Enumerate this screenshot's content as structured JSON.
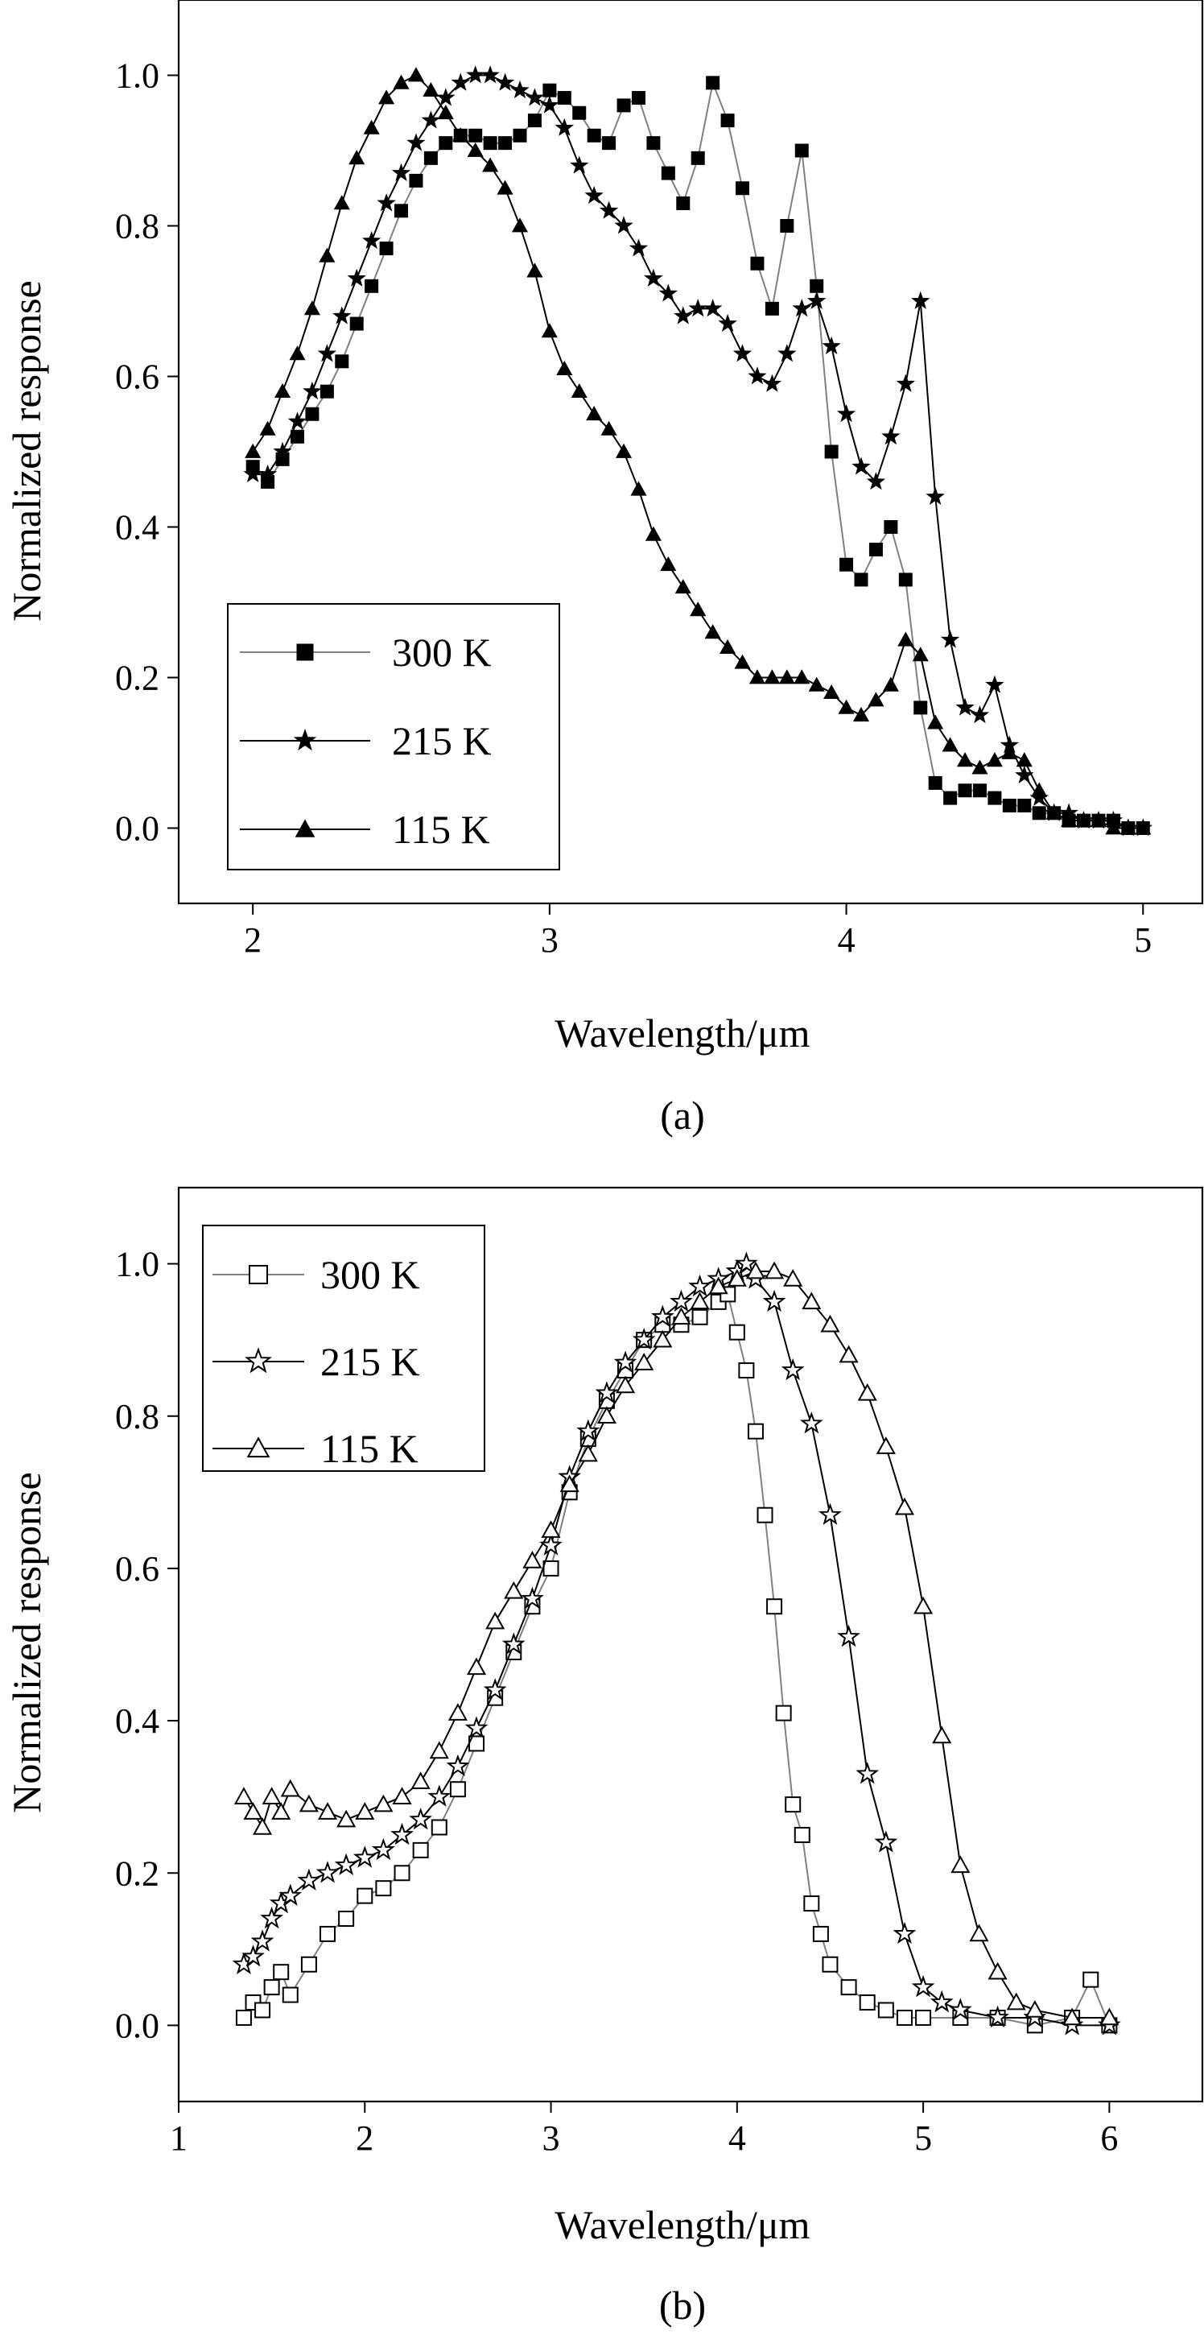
{
  "chart_data": [
    {
      "panel": "(a)",
      "type": "line",
      "xlabel": "Wavelength/μm",
      "ylabel": "Normalized response",
      "xlim": [
        1.75,
        5.2
      ],
      "ylim": [
        -0.1,
        1.1
      ],
      "xticks": [
        2,
        3,
        4,
        5
      ],
      "yticks": [
        0.0,
        0.2,
        0.4,
        0.6,
        0.8,
        1.0
      ],
      "xtick_labels": [
        "2",
        "3",
        "4",
        "5"
      ],
      "ytick_labels": [
        "0.0",
        "0.2",
        "0.4",
        "0.6",
        "0.8",
        "1.0"
      ],
      "legend_position": "lower-left",
      "series": [
        {
          "name": "300 K",
          "marker": "square-filled",
          "line_color": "#808080",
          "marker_color": "#000000",
          "x": [
            2.0,
            2.05,
            2.1,
            2.15,
            2.2,
            2.25,
            2.3,
            2.35,
            2.4,
            2.45,
            2.5,
            2.55,
            2.6,
            2.65,
            2.7,
            2.75,
            2.8,
            2.85,
            2.9,
            2.95,
            3.0,
            3.05,
            3.1,
            3.15,
            3.2,
            3.25,
            3.3,
            3.35,
            3.4,
            3.45,
            3.5,
            3.55,
            3.6,
            3.65,
            3.7,
            3.75,
            3.8,
            3.85,
            3.9,
            3.95,
            4.0,
            4.05,
            4.1,
            4.15,
            4.2,
            4.25,
            4.3,
            4.35,
            4.4,
            4.45,
            4.5,
            4.55,
            4.6,
            4.65,
            4.7,
            4.75,
            4.8,
            4.85,
            4.9,
            4.95,
            5.0
          ],
          "y": [
            0.48,
            0.46,
            0.49,
            0.52,
            0.55,
            0.58,
            0.62,
            0.67,
            0.72,
            0.77,
            0.82,
            0.86,
            0.89,
            0.91,
            0.92,
            0.92,
            0.91,
            0.91,
            0.92,
            0.94,
            0.98,
            0.97,
            0.95,
            0.92,
            0.91,
            0.96,
            0.97,
            0.91,
            0.87,
            0.83,
            0.89,
            0.99,
            0.94,
            0.85,
            0.75,
            0.69,
            0.8,
            0.9,
            0.72,
            0.5,
            0.35,
            0.33,
            0.37,
            0.4,
            0.33,
            0.16,
            0.06,
            0.04,
            0.05,
            0.05,
            0.04,
            0.03,
            0.03,
            0.02,
            0.02,
            0.01,
            0.01,
            0.01,
            0.01,
            0.0,
            0.0
          ]
        },
        {
          "name": "215 K",
          "marker": "star-filled",
          "line_color": "#000000",
          "marker_color": "#000000",
          "x": [
            2.0,
            2.05,
            2.1,
            2.15,
            2.2,
            2.25,
            2.3,
            2.35,
            2.4,
            2.45,
            2.5,
            2.55,
            2.6,
            2.65,
            2.7,
            2.75,
            2.8,
            2.85,
            2.9,
            2.95,
            3.0,
            3.05,
            3.1,
            3.15,
            3.2,
            3.25,
            3.3,
            3.35,
            3.4,
            3.45,
            3.5,
            3.55,
            3.6,
            3.65,
            3.7,
            3.75,
            3.8,
            3.85,
            3.9,
            3.95,
            4.0,
            4.05,
            4.1,
            4.15,
            4.2,
            4.25,
            4.3,
            4.35,
            4.4,
            4.45,
            4.5,
            4.55,
            4.6,
            4.65,
            4.7,
            4.75,
            4.8,
            4.85,
            4.9,
            4.95,
            5.0
          ],
          "y": [
            0.47,
            0.47,
            0.5,
            0.54,
            0.58,
            0.63,
            0.68,
            0.73,
            0.78,
            0.83,
            0.87,
            0.91,
            0.94,
            0.97,
            0.99,
            1.0,
            1.0,
            0.99,
            0.98,
            0.97,
            0.96,
            0.93,
            0.88,
            0.84,
            0.82,
            0.8,
            0.77,
            0.73,
            0.71,
            0.68,
            0.69,
            0.69,
            0.67,
            0.63,
            0.6,
            0.59,
            0.63,
            0.69,
            0.7,
            0.64,
            0.55,
            0.48,
            0.46,
            0.52,
            0.59,
            0.7,
            0.44,
            0.25,
            0.16,
            0.15,
            0.19,
            0.11,
            0.07,
            0.04,
            0.02,
            0.02,
            0.01,
            0.01,
            0.01,
            0.0,
            0.0
          ]
        },
        {
          "name": "115 K",
          "marker": "triangle-filled",
          "line_color": "#000000",
          "marker_color": "#000000",
          "x": [
            2.0,
            2.05,
            2.1,
            2.15,
            2.2,
            2.25,
            2.3,
            2.35,
            2.4,
            2.45,
            2.5,
            2.55,
            2.6,
            2.65,
            2.7,
            2.75,
            2.8,
            2.85,
            2.9,
            2.95,
            3.0,
            3.05,
            3.1,
            3.15,
            3.2,
            3.25,
            3.3,
            3.35,
            3.4,
            3.45,
            3.5,
            3.55,
            3.6,
            3.65,
            3.7,
            3.75,
            3.8,
            3.85,
            3.9,
            3.95,
            4.0,
            4.05,
            4.1,
            4.15,
            4.2,
            4.25,
            4.3,
            4.35,
            4.4,
            4.45,
            4.5,
            4.55,
            4.6,
            4.65,
            4.7,
            4.75,
            4.8,
            4.85,
            4.9,
            4.95,
            5.0
          ],
          "y": [
            0.5,
            0.53,
            0.58,
            0.63,
            0.69,
            0.76,
            0.83,
            0.89,
            0.93,
            0.97,
            0.99,
            1.0,
            0.98,
            0.95,
            0.92,
            0.9,
            0.88,
            0.85,
            0.8,
            0.74,
            0.66,
            0.61,
            0.58,
            0.55,
            0.53,
            0.5,
            0.45,
            0.39,
            0.35,
            0.32,
            0.29,
            0.26,
            0.24,
            0.22,
            0.2,
            0.2,
            0.2,
            0.2,
            0.19,
            0.18,
            0.16,
            0.15,
            0.17,
            0.19,
            0.25,
            0.23,
            0.14,
            0.11,
            0.09,
            0.08,
            0.09,
            0.1,
            0.09,
            0.05,
            0.02,
            0.01,
            0.01,
            0.01,
            0.0,
            0.0,
            0.0
          ]
        }
      ]
    },
    {
      "panel": "(b)",
      "type": "line",
      "xlabel": "Wavelength/μm",
      "ylabel": "Normalized response",
      "xlim": [
        1.0,
        6.5
      ],
      "ylim": [
        -0.1,
        1.1
      ],
      "xticks": [
        1,
        2,
        3,
        4,
        5,
        6
      ],
      "yticks": [
        0.0,
        0.2,
        0.4,
        0.6,
        0.8,
        1.0
      ],
      "xtick_labels": [
        "1",
        "2",
        "3",
        "4",
        "5",
        "6"
      ],
      "ytick_labels": [
        "0.0",
        "0.2",
        "0.4",
        "0.6",
        "0.8",
        "1.0"
      ],
      "legend_position": "top-left",
      "series": [
        {
          "name": "300 K",
          "marker": "square-open",
          "line_color": "#808080",
          "marker_color": "#000000",
          "x": [
            1.35,
            1.4,
            1.45,
            1.5,
            1.55,
            1.6,
            1.7,
            1.8,
            1.9,
            2.0,
            2.1,
            2.2,
            2.3,
            2.4,
            2.5,
            2.6,
            2.7,
            2.8,
            2.9,
            3.0,
            3.1,
            3.2,
            3.3,
            3.4,
            3.5,
            3.6,
            3.7,
            3.8,
            3.9,
            3.95,
            4.0,
            4.05,
            4.1,
            4.15,
            4.2,
            4.25,
            4.3,
            4.35,
            4.4,
            4.45,
            4.5,
            4.6,
            4.7,
            4.8,
            4.9,
            5.0,
            5.2,
            5.4,
            5.6,
            5.8,
            5.9,
            6.0
          ],
          "y": [
            0.01,
            0.03,
            0.02,
            0.05,
            0.07,
            0.04,
            0.08,
            0.12,
            0.14,
            0.17,
            0.18,
            0.2,
            0.23,
            0.26,
            0.31,
            0.37,
            0.43,
            0.49,
            0.55,
            0.6,
            0.7,
            0.77,
            0.82,
            0.86,
            0.9,
            0.92,
            0.92,
            0.93,
            0.95,
            0.96,
            0.91,
            0.86,
            0.78,
            0.67,
            0.55,
            0.41,
            0.29,
            0.25,
            0.16,
            0.12,
            0.08,
            0.05,
            0.03,
            0.02,
            0.01,
            0.01,
            0.01,
            0.01,
            0.0,
            0.01,
            0.06,
            0.0
          ]
        },
        {
          "name": "215 K",
          "marker": "star-open",
          "line_color": "#000000",
          "marker_color": "#000000",
          "x": [
            1.35,
            1.4,
            1.45,
            1.5,
            1.55,
            1.6,
            1.7,
            1.8,
            1.9,
            2.0,
            2.1,
            2.2,
            2.3,
            2.4,
            2.5,
            2.6,
            2.7,
            2.8,
            2.9,
            3.0,
            3.1,
            3.2,
            3.3,
            3.4,
            3.5,
            3.6,
            3.7,
            3.8,
            3.9,
            4.0,
            4.05,
            4.1,
            4.2,
            4.3,
            4.4,
            4.5,
            4.6,
            4.7,
            4.8,
            4.9,
            5.0,
            5.1,
            5.2,
            5.4,
            5.6,
            5.8,
            6.0
          ],
          "y": [
            0.08,
            0.09,
            0.11,
            0.14,
            0.16,
            0.17,
            0.19,
            0.2,
            0.21,
            0.22,
            0.23,
            0.25,
            0.27,
            0.3,
            0.34,
            0.39,
            0.44,
            0.5,
            0.56,
            0.63,
            0.72,
            0.78,
            0.83,
            0.87,
            0.9,
            0.93,
            0.95,
            0.97,
            0.98,
            0.99,
            1.0,
            0.98,
            0.95,
            0.86,
            0.79,
            0.67,
            0.51,
            0.33,
            0.24,
            0.12,
            0.05,
            0.03,
            0.02,
            0.01,
            0.01,
            0.0,
            0.0
          ]
        },
        {
          "name": "115 K",
          "marker": "triangle-open",
          "line_color": "#000000",
          "marker_color": "#000000",
          "x": [
            1.35,
            1.4,
            1.45,
            1.5,
            1.55,
            1.6,
            1.7,
            1.8,
            1.9,
            2.0,
            2.1,
            2.2,
            2.3,
            2.4,
            2.5,
            2.6,
            2.7,
            2.8,
            2.9,
            3.0,
            3.1,
            3.2,
            3.3,
            3.4,
            3.5,
            3.6,
            3.7,
            3.8,
            3.9,
            4.0,
            4.1,
            4.2,
            4.3,
            4.4,
            4.5,
            4.6,
            4.7,
            4.8,
            4.9,
            5.0,
            5.1,
            5.2,
            5.3,
            5.4,
            5.5,
            5.6,
            5.8,
            6.0
          ],
          "y": [
            0.3,
            0.28,
            0.26,
            0.3,
            0.28,
            0.31,
            0.29,
            0.28,
            0.27,
            0.28,
            0.29,
            0.3,
            0.32,
            0.36,
            0.41,
            0.47,
            0.53,
            0.57,
            0.61,
            0.65,
            0.71,
            0.75,
            0.8,
            0.84,
            0.87,
            0.9,
            0.93,
            0.95,
            0.97,
            0.98,
            0.99,
            0.99,
            0.98,
            0.95,
            0.92,
            0.88,
            0.83,
            0.76,
            0.68,
            0.55,
            0.38,
            0.21,
            0.12,
            0.07,
            0.03,
            0.02,
            0.01,
            0.01
          ]
        }
      ]
    }
  ]
}
